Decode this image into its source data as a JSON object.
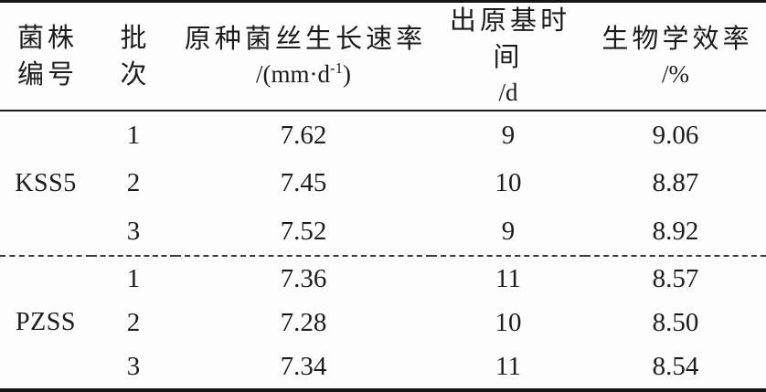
{
  "colors": {
    "background": "#fdfdfd",
    "text": "#1c1c1c",
    "rule": "#151515"
  },
  "table": {
    "header": {
      "strain": {
        "line1": "菌株",
        "line2": "编号"
      },
      "batch": {
        "line1": "批",
        "line2": "次"
      },
      "growth": {
        "line1": "原种菌丝生长速率",
        "unit_prefix": "/(mm·d",
        "unit_sup": "-1",
        "unit_suffix": ")"
      },
      "primordium": {
        "line1": "出原基时间",
        "line2": "/d"
      },
      "efficiency": {
        "line1": "生物学效率",
        "line2": "/%"
      }
    },
    "groups": [
      {
        "strain": "KSS5",
        "rows": [
          {
            "batch": "1",
            "growth_rate": "7.62",
            "primordium_days": "9",
            "bio_efficiency": "9.06"
          },
          {
            "batch": "2",
            "growth_rate": "7.45",
            "primordium_days": "10",
            "bio_efficiency": "8.87"
          },
          {
            "batch": "3",
            "growth_rate": "7.52",
            "primordium_days": "9",
            "bio_efficiency": "8.92"
          }
        ]
      },
      {
        "strain": "PZSS",
        "rows": [
          {
            "batch": "1",
            "growth_rate": "7.36",
            "primordium_days": "11",
            "bio_efficiency": "8.57"
          },
          {
            "batch": "2",
            "growth_rate": "7.28",
            "primordium_days": "10",
            "bio_efficiency": "8.50"
          },
          {
            "batch": "3",
            "growth_rate": "7.34",
            "primordium_days": "11",
            "bio_efficiency": "8.54"
          }
        ]
      }
    ]
  }
}
